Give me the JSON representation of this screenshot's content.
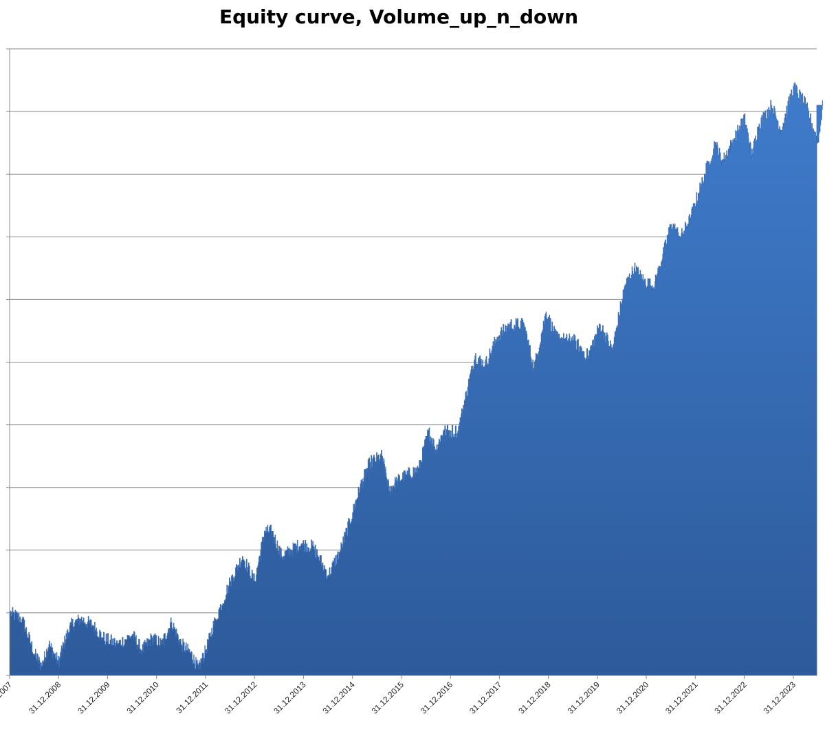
{
  "chart_data": {
    "type": "area",
    "title": "Equity curve, Volume_up_n_down",
    "xlabel": "",
    "ylabel": "",
    "grid": true,
    "legend": "none",
    "x_ticks": [
      "31.12.2007",
      "31.12.2008",
      "31.12.2009",
      "31.12.2010",
      "31.12.2011",
      "31.12.2012",
      "31.12.2013",
      "31.12.2014",
      "31.12.2015",
      "31.12.2016",
      "31.12.2017",
      "31.12.2018",
      "31.12.2019",
      "31.12.2020",
      "31.12.2021",
      "31.12.2022",
      "31.12.2023"
    ],
    "y_gridlines": 10,
    "y_range": [
      0,
      10
    ],
    "series": [
      {
        "color": "#3b70b8",
        "x": [
          2007.0,
          2007.25,
          2007.5,
          2007.65,
          2007.8,
          2008.0,
          2008.1,
          2008.25,
          2008.45,
          2008.7,
          2008.9,
          2009.2,
          2009.5,
          2009.7,
          2009.9,
          2010.1,
          2010.3,
          2010.5,
          2010.7,
          2010.85,
          2011.0,
          2011.2,
          2011.5,
          2011.75,
          2012.0,
          2012.2,
          2012.35,
          2012.55,
          2012.75,
          2012.95,
          2013.2,
          2013.5,
          2013.75,
          2014.0,
          2014.15,
          2014.35,
          2014.6,
          2014.75,
          2014.9,
          2015.1,
          2015.35,
          2015.55,
          2015.7,
          2015.85,
          2016.15,
          2016.35,
          2016.5,
          2016.7,
          2016.95,
          2017.2,
          2017.5,
          2017.7,
          2017.95,
          2018.15,
          2018.35,
          2018.5,
          2018.8,
          2019.05,
          2019.3,
          2019.55,
          2019.75,
          2019.95,
          2020.15,
          2020.3,
          2020.5,
          2020.7,
          2020.9,
          2021.1,
          2021.4,
          2021.55,
          2021.75,
          2022.0,
          2022.15,
          2022.3,
          2022.55,
          2022.75,
          2023.0,
          2023.25,
          2023.5,
          2023.6
        ],
        "values": [
          1.0,
          0.9,
          0.35,
          0.15,
          0.5,
          0.2,
          0.5,
          0.8,
          0.9,
          0.8,
          0.6,
          0.5,
          0.65,
          0.4,
          0.6,
          0.5,
          0.85,
          0.5,
          0.35,
          0.1,
          0.4,
          0.9,
          1.5,
          1.9,
          1.5,
          2.3,
          2.3,
          1.9,
          2.0,
          2.1,
          2.05,
          1.6,
          2.0,
          2.6,
          3.0,
          3.4,
          3.5,
          2.95,
          3.1,
          3.2,
          3.3,
          3.9,
          3.6,
          3.9,
          3.9,
          4.6,
          5.1,
          4.95,
          5.4,
          5.6,
          5.6,
          4.9,
          5.8,
          5.4,
          5.35,
          5.35,
          5.1,
          5.6,
          5.2,
          6.2,
          6.5,
          6.3,
          6.2,
          6.6,
          7.2,
          7.0,
          7.3,
          7.8,
          8.5,
          8.2,
          8.5,
          8.9,
          8.3,
          8.8,
          9.1,
          8.7,
          9.4,
          9.1,
          8.5,
          9.1
        ]
      }
    ]
  }
}
